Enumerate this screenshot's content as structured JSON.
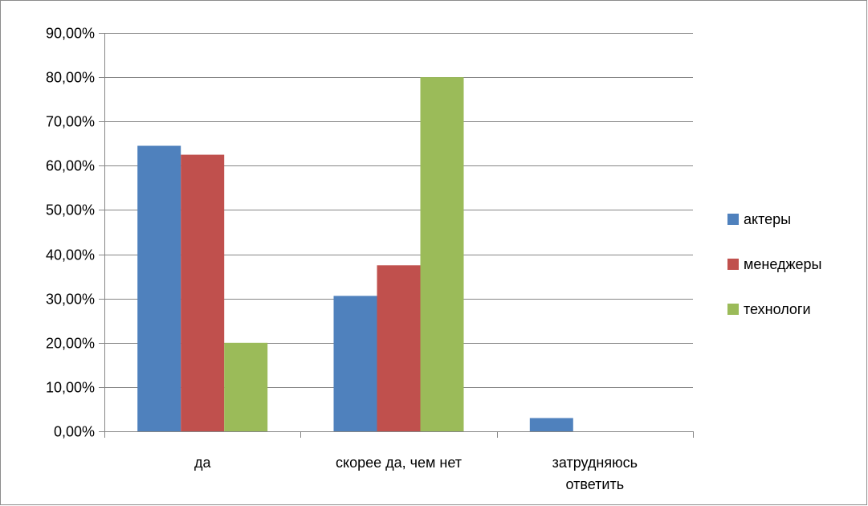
{
  "chart_data": {
    "type": "bar",
    "categories": [
      [
        "да"
      ],
      [
        "скорее да, чем нет"
      ],
      [
        "затрудняюсь",
        "ответить"
      ]
    ],
    "series": [
      {
        "name": "актеры",
        "color": "#4f81bd",
        "values": [
          0.645,
          0.306,
          0.03
        ]
      },
      {
        "name": "менеджеры",
        "color": "#c0504d",
        "values": [
          0.625,
          0.375,
          0.0
        ]
      },
      {
        "name": "технологи",
        "color": "#9bbb59",
        "values": [
          0.2,
          0.8,
          0.0
        ]
      }
    ],
    "yticks": [
      "0,00%",
      "10,00%",
      "20,00%",
      "30,00%",
      "40,00%",
      "50,00%",
      "60,00%",
      "70,00%",
      "80,00%",
      "90,00%"
    ],
    "ylim": [
      0,
      0.9
    ],
    "grid": true,
    "legend_position": "right"
  }
}
